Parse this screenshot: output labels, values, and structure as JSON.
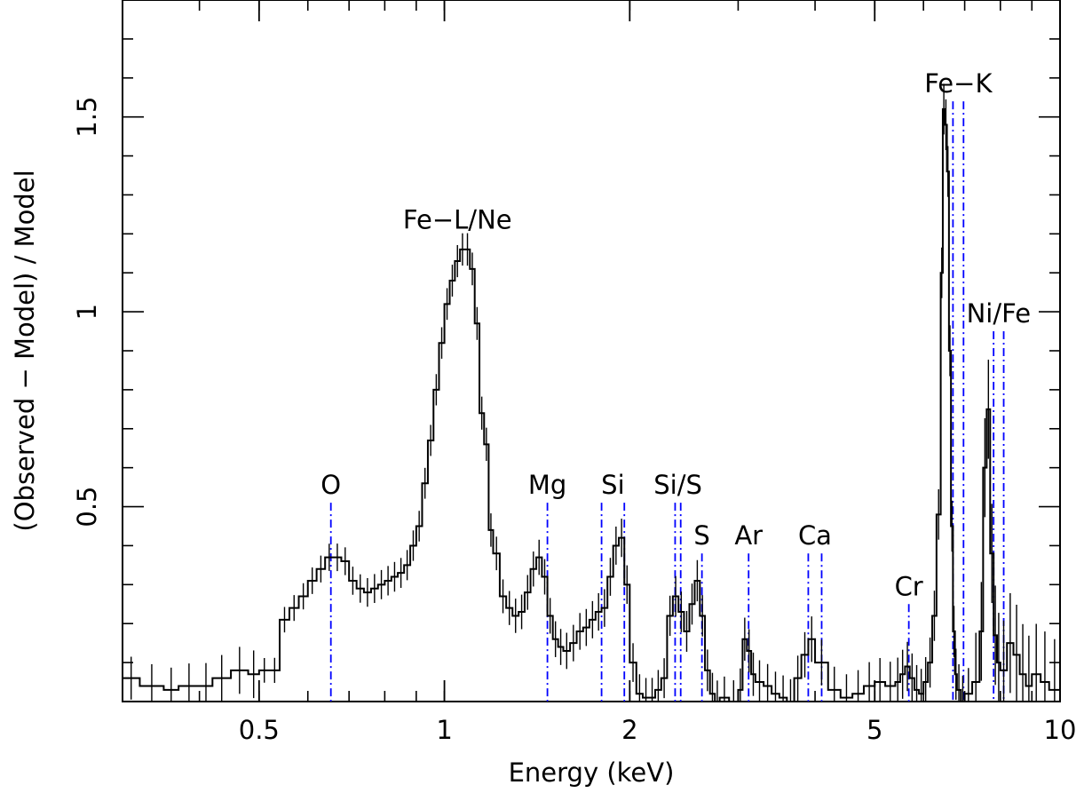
{
  "chart_data": {
    "type": "line",
    "xlabel": "Energy (keV)",
    "ylabel": "(Observed − Model) / Model",
    "xscale": "log",
    "xlim": [
      0.3,
      10
    ],
    "ylim": [
      0,
      1.8
    ],
    "x_ticks": [
      {
        "value": 0.5,
        "label": "0.5"
      },
      {
        "value": 1,
        "label": "1"
      },
      {
        "value": 2,
        "label": "2"
      },
      {
        "value": 5,
        "label": "5"
      },
      {
        "value": 10,
        "label": "10"
      }
    ],
    "y_ticks": [
      {
        "value": 0.5,
        "label": "0.5"
      },
      {
        "value": 1,
        "label": "1"
      },
      {
        "value": 1.5,
        "label": "1.5"
      }
    ],
    "grid": false,
    "colors": {
      "data": "#000000",
      "lines": "#0000ff"
    },
    "series": [
      {
        "x": [
          0.3,
          0.32,
          0.35,
          0.37,
          0.4,
          0.42,
          0.45,
          0.48,
          0.5,
          0.52,
          0.54,
          0.56,
          0.58,
          0.6,
          0.62,
          0.64,
          0.66,
          0.68,
          0.7,
          0.72,
          0.74,
          0.76,
          0.78,
          0.8,
          0.82,
          0.84,
          0.86,
          0.88,
          0.9,
          0.92,
          0.94,
          0.96,
          0.98,
          1.0,
          1.02,
          1.04,
          1.06,
          1.08,
          1.1,
          1.12,
          1.14,
          1.16,
          1.18,
          1.2,
          1.23,
          1.26,
          1.29,
          1.32,
          1.35,
          1.38,
          1.41,
          1.44,
          1.47,
          1.5,
          1.53,
          1.56,
          1.6,
          1.64,
          1.68,
          1.72,
          1.76,
          1.8,
          1.84,
          1.88,
          1.92,
          1.96,
          2.0,
          2.05,
          2.1,
          2.15,
          2.2,
          2.25,
          2.3,
          2.35,
          2.4,
          2.45,
          2.5,
          2.55,
          2.6,
          2.65,
          2.7,
          2.75,
          2.8,
          2.9,
          3.0,
          3.05,
          3.1,
          3.15,
          3.2,
          3.3,
          3.4,
          3.5,
          3.6,
          3.7,
          3.8,
          3.9,
          4.0,
          4.2,
          4.4,
          4.6,
          4.8,
          5.0,
          5.2,
          5.4,
          5.5,
          5.6,
          5.7,
          5.8,
          5.9,
          6.0,
          6.1,
          6.2,
          6.3,
          6.4,
          6.45,
          6.5,
          6.55,
          6.6,
          6.65,
          6.7,
          6.75,
          6.8,
          6.9,
          7.0,
          7.2,
          7.4,
          7.5,
          7.6,
          7.7,
          7.8,
          7.9,
          8.0,
          8.2,
          8.4,
          8.6,
          8.8,
          9.0,
          9.3,
          9.6,
          10.0
        ],
        "y": [
          0.06,
          0.04,
          0.03,
          0.04,
          0.04,
          0.06,
          0.08,
          0.07,
          0.08,
          0.08,
          0.21,
          0.24,
          0.27,
          0.31,
          0.34,
          0.37,
          0.37,
          0.36,
          0.31,
          0.29,
          0.28,
          0.29,
          0.3,
          0.31,
          0.32,
          0.33,
          0.35,
          0.4,
          0.45,
          0.56,
          0.67,
          0.8,
          0.92,
          1.02,
          1.08,
          1.13,
          1.16,
          1.16,
          1.11,
          0.97,
          0.74,
          0.66,
          0.44,
          0.38,
          0.27,
          0.24,
          0.22,
          0.23,
          0.28,
          0.34,
          0.37,
          0.32,
          0.22,
          0.16,
          0.14,
          0.13,
          0.15,
          0.18,
          0.19,
          0.21,
          0.23,
          0.24,
          0.32,
          0.4,
          0.42,
          0.3,
          0.1,
          0.02,
          0.01,
          0.01,
          0.03,
          0.06,
          0.22,
          0.27,
          0.23,
          0.18,
          0.25,
          0.31,
          0.22,
          0.08,
          0.02,
          0.0,
          0.01,
          0.0,
          0.03,
          0.16,
          0.13,
          0.07,
          0.05,
          0.04,
          0.02,
          0.01,
          0.0,
          0.06,
          0.12,
          0.16,
          0.1,
          0.03,
          0.01,
          0.02,
          0.04,
          0.05,
          0.04,
          0.05,
          0.07,
          0.09,
          0.06,
          0.03,
          0.02,
          0.05,
          0.1,
          0.22,
          0.48,
          1.1,
          1.52,
          1.48,
          1.36,
          0.9,
          0.45,
          0.18,
          0.07,
          0.03,
          0.0,
          0.02,
          0.05,
          0.18,
          0.6,
          0.75,
          0.38,
          0.17,
          0.1,
          0.08,
          0.15,
          0.12,
          0.07,
          0.04,
          0.07,
          0.05,
          0.03,
          0.06
        ]
      }
    ],
    "line_markers": [
      {
        "label": "O",
        "energies": [
          0.654
        ],
        "top": 0.51
      },
      {
        "label": "Fe−L/Ne",
        "energies": [],
        "top": 1.19
      },
      {
        "label": "Mg",
        "energies": [
          1.47
        ],
        "top": 0.51
      },
      {
        "label": "Si",
        "energies": [
          1.8,
          1.96
        ],
        "top": 0.51
      },
      {
        "label": "Si/S",
        "energies": [
          2.37,
          2.42
        ],
        "top": 0.51
      },
      {
        "label": "S",
        "energies": [
          2.62
        ],
        "top": 0.38
      },
      {
        "label": "Ar",
        "energies": [
          3.12
        ],
        "top": 0.38
      },
      {
        "label": "Ca",
        "energies": [
          3.9,
          4.1
        ],
        "top": 0.38
      },
      {
        "label": "Cr",
        "energies": [
          5.68
        ],
        "top": 0.25
      },
      {
        "label": "Fe−K",
        "energies": [
          6.7,
          6.97
        ],
        "top": 1.54
      },
      {
        "label": "Ni/Fe",
        "energies": [
          7.8,
          8.1
        ],
        "top": 0.95
      }
    ]
  }
}
